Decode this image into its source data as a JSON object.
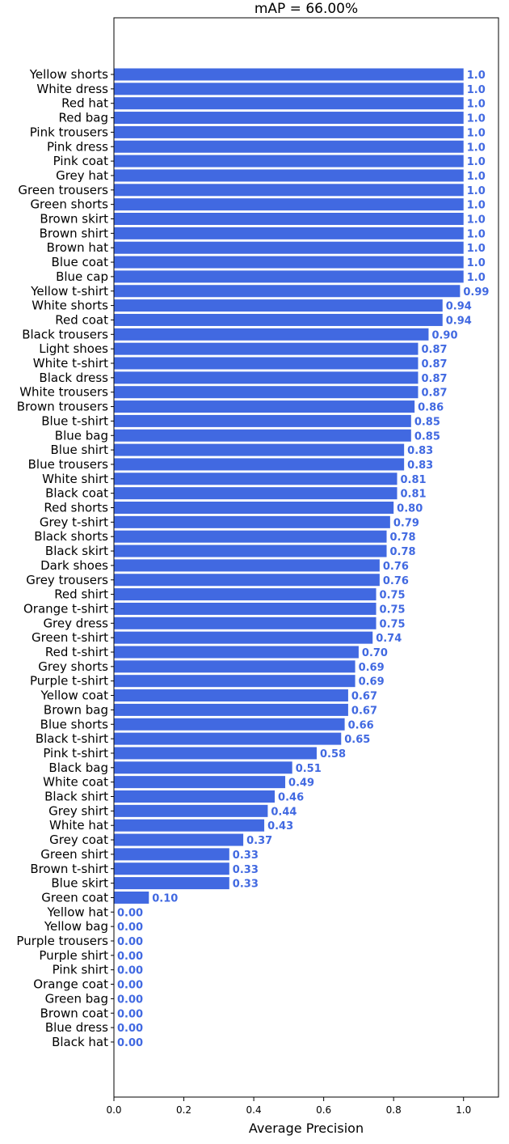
{
  "chart_data": {
    "type": "bar",
    "orientation": "horizontal",
    "title": "mAP = 66.00%",
    "xlabel": "Average Precision",
    "ylabel": "",
    "xlim": [
      0,
      1.1
    ],
    "xticks": [
      "0.0",
      "0.2",
      "0.4",
      "0.6",
      "0.8",
      "1.0"
    ],
    "grid": false,
    "bar_color": "#4169E1",
    "label_color": "#4169E1",
    "categories": [
      "Yellow shorts",
      "White dress",
      "Red hat",
      "Red bag",
      "Pink trousers",
      "Pink dress",
      "Pink coat",
      "Grey hat",
      "Green trousers",
      "Green shorts",
      "Brown skirt",
      "Brown shirt",
      "Brown hat",
      "Blue coat",
      "Blue cap",
      "Yellow t-shirt",
      "White shorts",
      "Red coat",
      "Black trousers",
      "Light shoes",
      "White t-shirt",
      "Black dress",
      "White trousers",
      "Brown trousers",
      "Blue t-shirt",
      "Blue bag",
      "Blue shirt",
      "Blue trousers",
      "White shirt",
      "Black coat",
      "Red shorts",
      "Grey t-shirt",
      "Black shorts",
      "Black skirt",
      "Dark shoes",
      "Grey trousers",
      "Red shirt",
      "Orange t-shirt",
      "Grey dress",
      "Green t-shirt",
      "Red t-shirt",
      "Grey shorts",
      "Purple t-shirt",
      "Yellow coat",
      "Brown bag",
      "Blue shorts",
      "Black t-shirt",
      "Pink t-shirt",
      "Black bag",
      "White coat",
      "Black shirt",
      "Grey shirt",
      "White hat",
      "Grey coat",
      "Green shirt",
      "Brown t-shirt",
      "Blue skirt",
      "Green coat",
      "Yellow hat",
      "Yellow bag",
      "Purple trousers",
      "Purple shirt",
      "Pink shirt",
      "Orange coat",
      "Green bag",
      "Brown coat",
      "Blue dress",
      "Black hat"
    ],
    "values": [
      1.0,
      1.0,
      1.0,
      1.0,
      1.0,
      1.0,
      1.0,
      1.0,
      1.0,
      1.0,
      1.0,
      1.0,
      1.0,
      1.0,
      1.0,
      0.99,
      0.94,
      0.94,
      0.9,
      0.87,
      0.87,
      0.87,
      0.87,
      0.86,
      0.85,
      0.85,
      0.83,
      0.83,
      0.81,
      0.81,
      0.8,
      0.79,
      0.78,
      0.78,
      0.76,
      0.76,
      0.75,
      0.75,
      0.75,
      0.74,
      0.7,
      0.69,
      0.69,
      0.67,
      0.67,
      0.66,
      0.65,
      0.58,
      0.51,
      0.49,
      0.46,
      0.44,
      0.43,
      0.37,
      0.33,
      0.33,
      0.33,
      0.1,
      0.0,
      0.0,
      0.0,
      0.0,
      0.0,
      0.0,
      0.0,
      0.0,
      0.0,
      0.0
    ],
    "value_labels": [
      "1.0",
      "1.0",
      "1.0",
      "1.0",
      "1.0",
      "1.0",
      "1.0",
      "1.0",
      "1.0",
      "1.0",
      "1.0",
      "1.0",
      "1.0",
      "1.0",
      "1.0",
      "0.99",
      "0.94",
      "0.94",
      "0.90",
      "0.87",
      "0.87",
      "0.87",
      "0.87",
      "0.86",
      "0.85",
      "0.85",
      "0.83",
      "0.83",
      "0.81",
      "0.81",
      "0.80",
      "0.79",
      "0.78",
      "0.78",
      "0.76",
      "0.76",
      "0.75",
      "0.75",
      "0.75",
      "0.74",
      "0.70",
      "0.69",
      "0.69",
      "0.67",
      "0.67",
      "0.66",
      "0.65",
      "0.58",
      "0.51",
      "0.49",
      "0.46",
      "0.44",
      "0.43",
      "0.37",
      "0.33",
      "0.33",
      "0.33",
      "0.10",
      "0.00",
      "0.00",
      "0.00",
      "0.00",
      "0.00",
      "0.00",
      "0.00",
      "0.00",
      "0.00",
      "0.00"
    ]
  }
}
